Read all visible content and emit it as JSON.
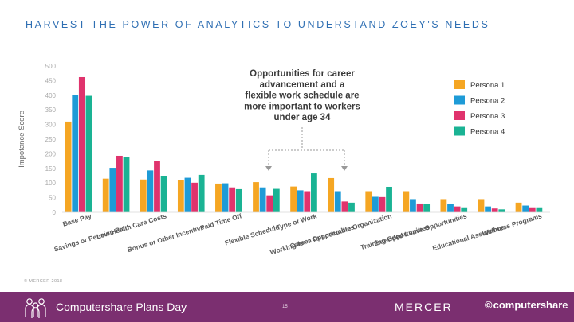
{
  "headline": "HARVEST THE POWER OF ANALYTICS TO UNDERSTAND ZOEY'S NEEDS",
  "copyright": "© MERCER 2018",
  "footer": {
    "title": "Computershare Plans Day",
    "page_number": "15",
    "mercer_logo": "MERCER",
    "computershare_logo": "computershare",
    "people_icon": "people-group-icon"
  },
  "callout": {
    "lines": [
      "Opportunities for career",
      "advancement and a",
      "flexible work schedule are",
      "more important to workers",
      "under age 34"
    ]
  },
  "chart_data": {
    "type": "bar",
    "title": "",
    "xlabel": "",
    "ylabel": "Impotance Score",
    "ylim": [
      0,
      500
    ],
    "yticks": [
      0,
      50,
      100,
      150,
      200,
      250,
      300,
      350,
      400,
      450,
      500
    ],
    "legend_position": "right",
    "grid": false,
    "categories": [
      "Base Pay",
      "Savings or Pension Plan",
      "Low Health Care Costs",
      "Bonus or Other Incentive",
      "Paid Time Off",
      "Flexible Schedule",
      "Type of Work",
      "Career Opportunities",
      "Working for a Respectable Organization",
      "Training Opportunities",
      "Extended Leave Opportunities",
      "Educational Assistance",
      "Wellness Programs"
    ],
    "series": [
      {
        "name": "Persona 1",
        "color": "#f5a623",
        "values": [
          310,
          115,
          112,
          110,
          98,
          103,
          88,
          117,
          72,
          72,
          45,
          45,
          33
        ]
      },
      {
        "name": "Persona 2",
        "color": "#1e9bd7",
        "values": [
          402,
          152,
          143,
          118,
          99,
          85,
          75,
          72,
          53,
          45,
          28,
          20,
          23
        ]
      },
      {
        "name": "Persona 3",
        "color": "#e0336d",
        "values": [
          462,
          193,
          176,
          101,
          85,
          58,
          72,
          37,
          52,
          30,
          20,
          13,
          17
        ]
      },
      {
        "name": "Persona 4",
        "color": "#1ab394",
        "values": [
          398,
          190,
          125,
          128,
          79,
          80,
          133,
          33,
          87,
          28,
          17,
          10,
          17
        ]
      }
    ]
  }
}
